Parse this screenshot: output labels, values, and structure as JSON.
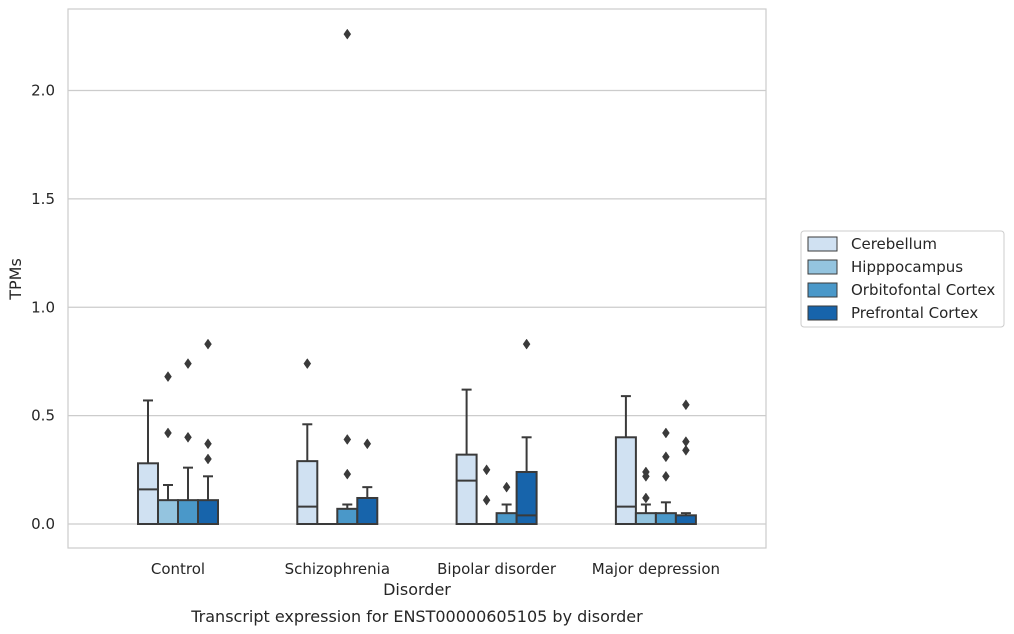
{
  "caption": "Transcript expression for ENST00000605105 by disorder",
  "chart_data": {
    "type": "box",
    "xlabel": "Disorder",
    "ylabel": "TPMs",
    "categories": [
      "Control",
      "Schizophrenia",
      "Bipolar disorder",
      "Major depression"
    ],
    "ylim": [
      -0.11,
      2.38
    ],
    "yticks": [
      0.0,
      0.5,
      1.0,
      1.5,
      2.0
    ],
    "ytick_labels": [
      "0.0",
      "0.5",
      "1.0",
      "1.5",
      "2.0"
    ],
    "grid": "horizontal",
    "legend_position": "right",
    "series": [
      {
        "name": "Cerebellum",
        "color": "#d0e1f2",
        "boxes": [
          {
            "q1": 0.0,
            "median": 0.16,
            "q3": 0.28,
            "whisker_low": 0.0,
            "whisker_high": 0.57,
            "outliers": []
          },
          {
            "q1": 0.0,
            "median": 0.08,
            "q3": 0.29,
            "whisker_low": 0.0,
            "whisker_high": 0.46,
            "outliers": [
              0.74
            ]
          },
          {
            "q1": 0.0,
            "median": 0.2,
            "q3": 0.32,
            "whisker_low": 0.0,
            "whisker_high": 0.62,
            "outliers": []
          },
          {
            "q1": 0.0,
            "median": 0.08,
            "q3": 0.4,
            "whisker_low": 0.0,
            "whisker_high": 0.59,
            "outliers": []
          }
        ]
      },
      {
        "name": "Hipppocampus",
        "color": "#94c4df",
        "boxes": [
          {
            "q1": 0.0,
            "median": 0.0,
            "q3": 0.11,
            "whisker_low": 0.0,
            "whisker_high": 0.18,
            "outliers": [
              0.42,
              0.68
            ]
          },
          {
            "q1": 0.0,
            "median": 0.0,
            "q3": 0.0,
            "whisker_low": 0.0,
            "whisker_high": 0.0,
            "outliers": []
          },
          {
            "q1": 0.0,
            "median": 0.0,
            "q3": 0.0,
            "whisker_low": 0.0,
            "whisker_high": 0.0,
            "outliers": [
              0.11,
              0.25
            ]
          },
          {
            "q1": 0.0,
            "median": 0.0,
            "q3": 0.05,
            "whisker_low": 0.0,
            "whisker_high": 0.09,
            "outliers": [
              0.12,
              0.22,
              0.24
            ]
          }
        ]
      },
      {
        "name": "Orbitofontal Cortex",
        "color": "#4a98c9",
        "boxes": [
          {
            "q1": 0.0,
            "median": 0.0,
            "q3": 0.11,
            "whisker_low": 0.0,
            "whisker_high": 0.26,
            "outliers": [
              0.4,
              0.74
            ]
          },
          {
            "q1": 0.0,
            "median": 0.0,
            "q3": 0.07,
            "whisker_low": 0.0,
            "whisker_high": 0.09,
            "outliers": [
              0.23,
              0.39,
              2.26
            ]
          },
          {
            "q1": 0.0,
            "median": 0.0,
            "q3": 0.05,
            "whisker_low": 0.0,
            "whisker_high": 0.09,
            "outliers": [
              0.17
            ]
          },
          {
            "q1": 0.0,
            "median": 0.0,
            "q3": 0.05,
            "whisker_low": 0.0,
            "whisker_high": 0.1,
            "outliers": [
              0.22,
              0.31,
              0.42
            ]
          }
        ]
      },
      {
        "name": "Prefrontal Cortex",
        "color": "#1764ab",
        "boxes": [
          {
            "q1": 0.0,
            "median": 0.0,
            "q3": 0.11,
            "whisker_low": 0.0,
            "whisker_high": 0.22,
            "outliers": [
              0.3,
              0.37,
              0.83
            ]
          },
          {
            "q1": 0.0,
            "median": 0.0,
            "q3": 0.12,
            "whisker_low": 0.0,
            "whisker_high": 0.17,
            "outliers": [
              0.37
            ]
          },
          {
            "q1": 0.0,
            "median": 0.04,
            "q3": 0.24,
            "whisker_low": 0.0,
            "whisker_high": 0.4,
            "outliers": [
              0.83
            ]
          },
          {
            "q1": 0.0,
            "median": 0.0,
            "q3": 0.04,
            "whisker_low": 0.0,
            "whisker_high": 0.05,
            "outliers": [
              0.34,
              0.38,
              0.55
            ]
          }
        ]
      }
    ]
  }
}
